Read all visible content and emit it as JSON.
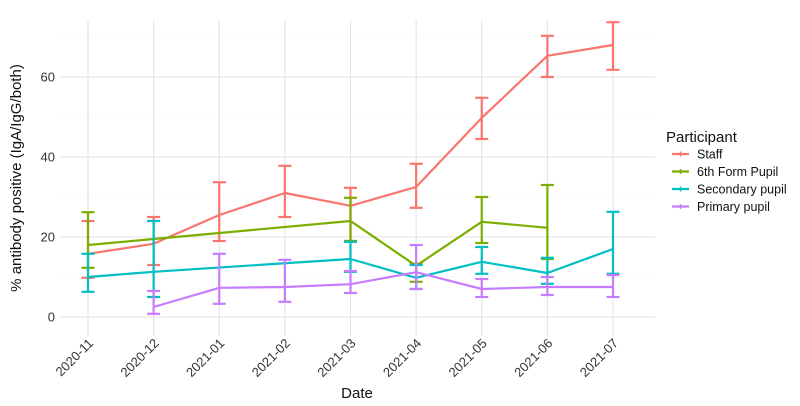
{
  "chart_data": {
    "type": "line",
    "title": "",
    "xlabel": "Date",
    "ylabel": "% antibody positive (IgA/IgG/both)",
    "ylim": [
      -4,
      75
    ],
    "yticks": [
      0,
      20,
      40,
      60
    ],
    "grid": true,
    "legend_position": "right",
    "legend_title": "Participant",
    "categories": [
      "2020-11",
      "2020-12",
      "2021-01",
      "2021-02",
      "2021-03",
      "2021-04",
      "2021-05",
      "2021-06",
      "2021-07"
    ],
    "series": [
      {
        "name": "Staff",
        "color": "#F8766D",
        "values": [
          15.8,
          18.3,
          25.5,
          31.0,
          27.8,
          32.5,
          49.8,
          65.3,
          68.0
        ],
        "lower": [
          9.8,
          13.0,
          19.0,
          25.0,
          19.0,
          27.3,
          44.5,
          60.0,
          61.8
        ],
        "upper": [
          24.0,
          25.0,
          33.7,
          37.8,
          32.3,
          38.3,
          54.8,
          70.3,
          73.7
        ]
      },
      {
        "name": "6th Form Pupil",
        "color": "#7CAE00",
        "values": [
          18.0,
          19.5,
          null,
          null,
          24.0,
          12.8,
          23.8,
          22.3,
          null
        ],
        "lower": [
          12.3,
          null,
          null,
          null,
          19.0,
          8.8,
          18.5,
          14.5,
          null
        ],
        "upper": [
          26.2,
          null,
          null,
          null,
          29.8,
          13.3,
          30.0,
          33.0,
          null
        ]
      },
      {
        "name": "Secondary pupil",
        "color": "#00BFC4",
        "values": [
          10.0,
          11.3,
          null,
          null,
          14.5,
          9.8,
          13.8,
          11.0,
          17.0
        ],
        "lower": [
          6.3,
          5.0,
          null,
          null,
          11.3,
          7.0,
          10.8,
          8.3,
          10.8
        ],
        "upper": [
          15.8,
          24.0,
          null,
          null,
          18.8,
          13.0,
          17.5,
          14.8,
          26.3
        ]
      },
      {
        "name": "Primary pupil",
        "color": "#C77CFF",
        "values": [
          null,
          2.5,
          7.3,
          7.5,
          8.2,
          11.2,
          7.0,
          7.5,
          7.5
        ],
        "lower": [
          null,
          0.8,
          3.3,
          3.8,
          6.0,
          7.0,
          5.0,
          5.5,
          5.0
        ],
        "upper": [
          null,
          6.5,
          15.8,
          14.3,
          11.5,
          18.0,
          9.5,
          10.0,
          10.5
        ]
      }
    ]
  },
  "legend": {
    "title": "Participant",
    "items": [
      "Staff",
      "6th Form Pupil",
      "Secondary pupil",
      "Primary pupil"
    ]
  },
  "axes": {
    "x_title": "Date",
    "y_title": "% antibody positive (IgA/IgG/both)"
  }
}
